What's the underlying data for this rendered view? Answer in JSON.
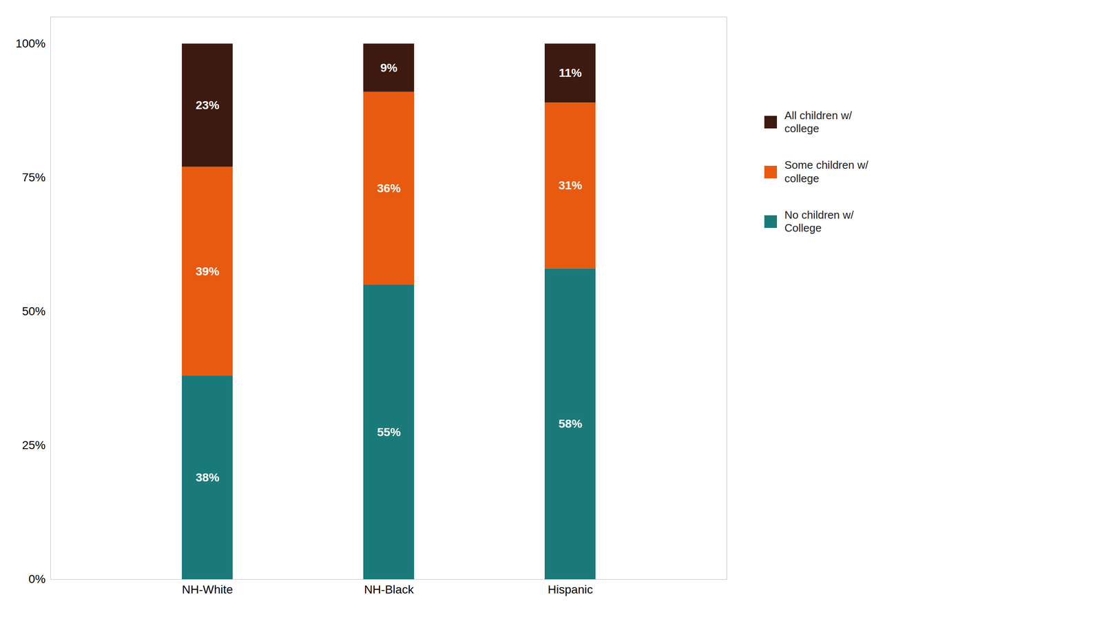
{
  "chart_data": {
    "type": "bar",
    "stacked": true,
    "categories": [
      "NH-White",
      "NH-Black",
      "Hispanic"
    ],
    "series": [
      {
        "name": "No children w/\nCollege",
        "color": "#1a7a7a",
        "values": [
          38,
          55,
          58
        ],
        "value_labels": [
          "38%",
          "55%",
          "58%"
        ]
      },
      {
        "name": "Some children w/\ncollege",
        "color": "#e85a10",
        "values": [
          39,
          36,
          31
        ],
        "value_labels": [
          "39%",
          "36%",
          "31%"
        ]
      },
      {
        "name": "All children w/\ncollege",
        "color": "#3d1a0f",
        "values": [
          23,
          9,
          11
        ],
        "value_labels": [
          "23%",
          "9%",
          "11%"
        ]
      }
    ],
    "ylim": [
      0,
      105
    ],
    "yticks": [
      {
        "value": 0,
        "label": "0%"
      },
      {
        "value": 25,
        "label": "25%"
      },
      {
        "value": 50,
        "label": "50%"
      },
      {
        "value": 75,
        "label": "75%"
      },
      {
        "value": 100,
        "label": "100%"
      }
    ],
    "grid": false,
    "data_labels": true,
    "legend": "right"
  }
}
